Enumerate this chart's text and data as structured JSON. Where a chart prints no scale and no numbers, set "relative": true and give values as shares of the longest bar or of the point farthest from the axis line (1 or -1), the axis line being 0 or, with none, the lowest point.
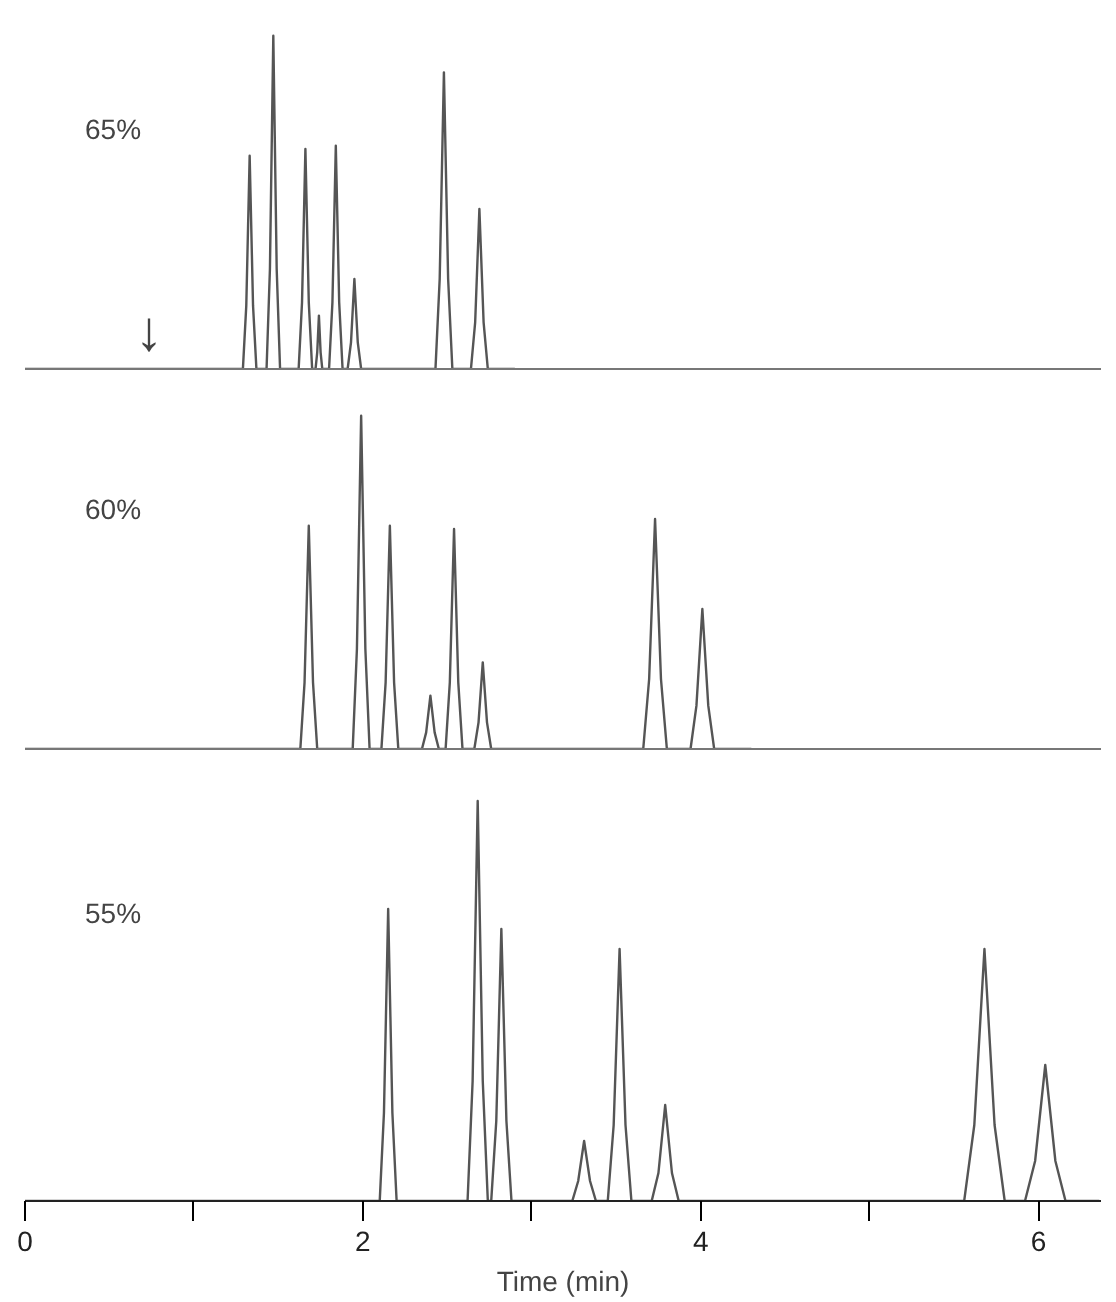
{
  "chart_data": [
    {
      "type": "line",
      "relative": true,
      "tick_labels": false,
      "xlim": [
        0,
        6.37
      ],
      "grid": false,
      "legend": false,
      "line_style": "solid",
      "marker": "none",
      "annotations": [
        "65%",
        "↓"
      ],
      "series": [
        {
          "color": "#555555",
          "x": [
            0,
            1.29,
            1.31,
            1.33,
            1.35,
            1.37,
            1.43,
            1.45,
            1.47,
            1.49,
            1.51,
            1.62,
            1.64,
            1.66,
            1.68,
            1.7,
            1.72,
            1.73,
            1.74,
            1.75,
            1.76,
            1.8,
            1.82,
            1.84,
            1.86,
            1.88,
            1.91,
            1.93,
            1.95,
            1.97,
            1.99,
            2.43,
            2.455,
            2.48,
            2.505,
            2.53,
            2.64,
            2.665,
            2.69,
            2.715,
            2.74,
            2.9
          ],
          "values": [
            0,
            0,
            0.19,
            0.64,
            0.19,
            0,
            0,
            0.3,
            1,
            0.3,
            0,
            0,
            0.2,
            0.66,
            0.2,
            0,
            0,
            0.05,
            0.16,
            0.05,
            0,
            0,
            0.2,
            0.67,
            0.2,
            0,
            0,
            0.08,
            0.27,
            0.08,
            0,
            0,
            0.27,
            0.89,
            0.27,
            0,
            0,
            0.14,
            0.48,
            0.14,
            0,
            0
          ]
        }
      ]
    },
    {
      "type": "line",
      "relative": true,
      "tick_labels": false,
      "xlim": [
        0,
        6.37
      ],
      "grid": false,
      "legend": false,
      "line_style": "solid",
      "marker": "none",
      "annotations": [
        "60%"
      ],
      "series": [
        {
          "color": "#555555",
          "x": [
            0,
            1.63,
            1.655,
            1.68,
            1.705,
            1.73,
            1.94,
            1.965,
            1.99,
            2.015,
            2.04,
            2.11,
            2.135,
            2.16,
            2.185,
            2.21,
            2.35,
            2.375,
            2.4,
            2.425,
            2.45,
            2.49,
            2.515,
            2.54,
            2.565,
            2.59,
            2.66,
            2.685,
            2.71,
            2.735,
            2.76,
            3.66,
            3.695,
            3.73,
            3.765,
            3.8,
            3.94,
            3.975,
            4.01,
            4.045,
            4.08,
            4.3
          ],
          "values": [
            0,
            0,
            0.2,
            0.67,
            0.2,
            0,
            0,
            0.3,
            1,
            0.3,
            0,
            0,
            0.2,
            0.67,
            0.2,
            0,
            0,
            0.05,
            0.16,
            0.05,
            0,
            0,
            0.2,
            0.66,
            0.2,
            0,
            0,
            0.08,
            0.26,
            0.08,
            0,
            0,
            0.21,
            0.69,
            0.21,
            0,
            0,
            0.13,
            0.42,
            0.13,
            0,
            0
          ]
        }
      ]
    },
    {
      "type": "line",
      "relative": true,
      "tick_labels": "x",
      "xlim": [
        0,
        6.37
      ],
      "grid": false,
      "legend": false,
      "line_style": "solid",
      "marker": "none",
      "xlabel": "Time (min)",
      "xticks": [
        0,
        {
          "value": 1,
          "label": null
        },
        2,
        {
          "value": 3,
          "label": null
        },
        4,
        {
          "value": 5,
          "label": null
        },
        6
      ],
      "annotations": [
        "55%"
      ],
      "series": [
        {
          "color": "#555555",
          "x": [
            0,
            2.1,
            2.125,
            2.15,
            2.175,
            2.2,
            2.62,
            2.65,
            2.68,
            2.71,
            2.74,
            2.76,
            2.79,
            2.82,
            2.85,
            2.88,
            3.24,
            3.275,
            3.31,
            3.345,
            3.38,
            3.45,
            3.485,
            3.52,
            3.555,
            3.59,
            3.71,
            3.75,
            3.79,
            3.83,
            3.87,
            5.56,
            5.62,
            5.68,
            5.74,
            5.8,
            5.92,
            5.98,
            6.04,
            6.1,
            6.16,
            6.36
          ],
          "values": [
            0,
            0,
            0.22,
            0.73,
            0.22,
            0,
            0,
            0.3,
            1,
            0.3,
            0,
            0,
            0.2,
            0.68,
            0.2,
            0,
            0,
            0.05,
            0.15,
            0.05,
            0,
            0,
            0.19,
            0.63,
            0.19,
            0,
            0,
            0.07,
            0.24,
            0.07,
            0,
            0,
            0.19,
            0.63,
            0.19,
            0,
            0,
            0.1,
            0.34,
            0.1,
            0,
            0
          ]
        }
      ]
    }
  ]
}
